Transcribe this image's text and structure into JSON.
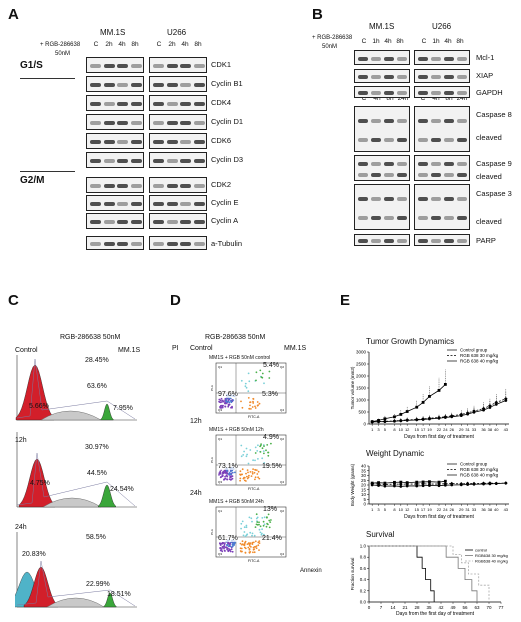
{
  "panels": {
    "a": "A",
    "b": "B",
    "c": "C",
    "d": "D",
    "e": "E"
  },
  "panelA": {
    "treatment": "+ RGB-286638",
    "dose": "50nM",
    "cell_lines": [
      "MM.1S",
      "U266"
    ],
    "lanes": [
      "C",
      "2h",
      "4h",
      "8h"
    ],
    "phases": [
      "G1/S",
      "G2/M"
    ],
    "proteins": [
      "CDK1",
      "Cyclin B1",
      "CDK4",
      "Cyclin D1",
      "CDK6",
      "Cyclin D3",
      "CDK2",
      "Cyclin E",
      "Cyclin A",
      "a-Tubulin"
    ]
  },
  "panelB": {
    "treatment": "+ RGB-286638",
    "dose": "50nM",
    "cell_lines": [
      "MM.1S",
      "U266"
    ],
    "lanes_top": [
      "C",
      "1h",
      "4h",
      "8h"
    ],
    "lanes_bottom": [
      "C",
      "4h",
      "8h",
      "24h"
    ],
    "proteins": [
      "Mcl-1",
      "XIAP",
      "GAPDH",
      "Caspase 8",
      "cleaved",
      "Caspase 9",
      "cleaved",
      "Caspase 3",
      "cleaved",
      "PARP"
    ]
  },
  "panelC": {
    "title": "RGB-286638 50nM",
    "cell_line": "MM.1S",
    "rows": [
      {
        "label": "Control",
        "values": [
          "28.45%",
          "63.6%",
          "5.66%",
          "7.95%"
        ]
      },
      {
        "label": "12h",
        "values": [
          "30.97%",
          "44.5%",
          "4.75%",
          "24.54%"
        ]
      },
      {
        "label": "24h",
        "values": [
          "58.5%",
          "20.83%",
          "22.99%",
          "18.51%"
        ]
      }
    ]
  },
  "panelD": {
    "title": "RGB-286638 50nM",
    "pi_label": "PI",
    "cell_line": "MM.1S",
    "xaxis": "Annexin",
    "plot_caption": "FITC-A",
    "plot_ylab": "PI-A",
    "quadrants": [
      "Q1",
      "Q2",
      "Q3",
      "Q4"
    ],
    "rows": [
      {
        "label": "Control",
        "header": "MM1S + RGB 50nM control",
        "ul": "5.4%",
        "ll": "97.6%",
        "lr": "5.3%"
      },
      {
        "label": "12h",
        "header": "MM1S + RGB 50nM 12h",
        "ul": "4.9%",
        "ll": "73.1%",
        "lr": "19.5%"
      },
      {
        "label": "24h",
        "header": "MM1S + RGB 50nM 24h",
        "ul": "13%",
        "ll": "61.7%",
        "lr": "21.4%"
      }
    ]
  },
  "chart_data": [
    {
      "type": "line",
      "title": "Tumor Growth Dynamics",
      "xlabel": "Days from first day of treatment",
      "ylabel": "Tumor volume (mm3)",
      "ylim": [
        0,
        3000
      ],
      "yticks": [
        0,
        500,
        1000,
        1500,
        2000,
        2500,
        3000
      ],
      "x": [
        1,
        3,
        5,
        8,
        10,
        12,
        15,
        17,
        19,
        22,
        24,
        26,
        29,
        31,
        33,
        36,
        38,
        40,
        43
      ],
      "series": [
        {
          "name": "Control group",
          "values": [
            100,
            150,
            220,
            300,
            400,
            520,
            700,
            900,
            1150,
            1400,
            1650,
            null,
            null,
            null,
            null,
            null,
            null,
            null,
            null
          ]
        },
        {
          "name": "RGB 638 30 mg/kg",
          "values": [
            90,
            100,
            110,
            130,
            150,
            170,
            190,
            210,
            240,
            270,
            300,
            340,
            400,
            460,
            540,
            640,
            760,
            900,
            1050
          ]
        },
        {
          "name": "RGB 638 40 mg/kg",
          "values": [
            85,
            95,
            100,
            115,
            130,
            150,
            170,
            190,
            210,
            240,
            270,
            300,
            350,
            410,
            490,
            580,
            690,
            820,
            980
          ]
        }
      ]
    },
    {
      "type": "line",
      "title": "Weight Dynamic",
      "xlabel": "Days from first day of treatment",
      "ylabel": "Body Weight (grams)",
      "ylim": [
        0,
        40
      ],
      "yticks": [
        0,
        5,
        10,
        15,
        20,
        25,
        30,
        35,
        40
      ],
      "x": [
        1,
        3,
        5,
        8,
        10,
        12,
        15,
        17,
        19,
        22,
        24,
        26,
        29,
        31,
        33,
        36,
        38,
        40,
        43
      ],
      "series": [
        {
          "name": "Control group",
          "values": [
            22,
            22.5,
            22,
            22.8,
            23,
            22.5,
            23,
            23.2,
            23.5,
            23,
            24,
            null,
            null,
            null,
            null,
            null,
            null,
            null,
            null
          ]
        },
        {
          "name": "RGB 638 30 mg/kg",
          "values": [
            21.5,
            21,
            20.5,
            21,
            20.8,
            21,
            21,
            21.2,
            21,
            21,
            21.3,
            21.5,
            21.2,
            21.6,
            21.5,
            21.8,
            22,
            21.7,
            22
          ]
        },
        {
          "name": "RGB 638 40 mg/kg",
          "values": [
            20,
            19.5,
            18.8,
            19,
            18.5,
            19,
            19,
            19.2,
            19.5,
            19.3,
            19.8,
            20,
            20.2,
            20.5,
            20.8,
            21,
            21.2,
            21.5,
            22
          ]
        }
      ]
    },
    {
      "type": "line",
      "title": "Survival",
      "xlabel": "Days from the first day of treatment",
      "ylabel": "Fraction survival",
      "ylim": [
        0,
        1
      ],
      "yticks": [
        0,
        0.2,
        0.4,
        0.6,
        0.8,
        1.0
      ],
      "xticks": [
        0,
        7,
        14,
        21,
        28,
        35,
        42,
        49,
        56,
        63,
        70,
        77
      ],
      "series": [
        {
          "name": "control",
          "steps": [
            [
              0,
              1
            ],
            [
              28,
              1
            ],
            [
              28,
              0.8
            ],
            [
              31,
              0.8
            ],
            [
              31,
              0.6
            ],
            [
              33,
              0.6
            ],
            [
              33,
              0.4
            ],
            [
              36,
              0.4
            ],
            [
              36,
              0.2
            ],
            [
              38,
              0.2
            ],
            [
              38,
              0
            ]
          ]
        },
        {
          "name": "RGB638 30 mg/kg",
          "steps": [
            [
              0,
              1
            ],
            [
              45,
              1
            ],
            [
              45,
              0.8
            ],
            [
              52,
              0.8
            ],
            [
              52,
              0.6
            ],
            [
              56,
              0.6
            ],
            [
              56,
              0.4
            ],
            [
              60,
              0.4
            ],
            [
              60,
              0.2
            ],
            [
              63,
              0.2
            ],
            [
              63,
              0
            ]
          ]
        },
        {
          "name": "RGB638 40 mg/kg",
          "steps": [
            [
              0,
              1
            ],
            [
              49,
              1
            ],
            [
              49,
              0.85
            ],
            [
              54,
              0.85
            ],
            [
              54,
              0.7
            ],
            [
              58,
              0.7
            ],
            [
              58,
              0.5
            ],
            [
              64,
              0.5
            ],
            [
              64,
              0.3
            ],
            [
              70,
              0.3
            ],
            [
              70,
              0
            ]
          ]
        }
      ]
    }
  ]
}
